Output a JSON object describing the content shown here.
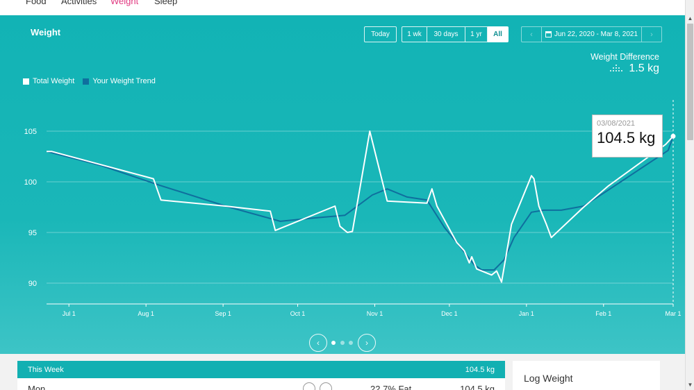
{
  "nav": {
    "items": [
      "Food",
      "Activities",
      "Weight",
      "Sleep"
    ],
    "active": "Weight"
  },
  "panel": {
    "title": "Weight"
  },
  "range_buttons": {
    "today": "Today",
    "week": "1 wk",
    "month": "30 days",
    "year": "1 yr",
    "all": "All",
    "active": "All"
  },
  "date_range": "Jun 22, 2020 - Mar 8, 2021",
  "weight_difference": {
    "label": "Weight Difference",
    "value": "1.5 kg"
  },
  "legend": {
    "total": {
      "label": "Total Weight",
      "color": "#ffffff"
    },
    "trend": {
      "label": "Your Weight Trend",
      "color": "#0f6f9e"
    }
  },
  "tooltip": {
    "date": "03/08/2021",
    "value": "104.5 kg"
  },
  "chart_data": {
    "type": "line",
    "y_ticks": [
      105,
      100,
      95,
      90
    ],
    "ylim": [
      88,
      106
    ],
    "x_ticks": [
      "Jul 1",
      "Aug 1",
      "Sep 1",
      "Oct 1",
      "Nov 1",
      "Dec 1",
      "Jan 1",
      "Feb 1",
      "Mar 1"
    ],
    "x_tick_day": [
      9,
      40,
      71,
      101,
      132,
      162,
      193,
      224,
      252
    ],
    "grid": true,
    "series": [
      {
        "name": "Total Weight",
        "color": "#ffffff",
        "points": [
          [
            0,
            103
          ],
          [
            2,
            103
          ],
          [
            43,
            100.3
          ],
          [
            46,
            98.2
          ],
          [
            72,
            97.6
          ],
          [
            90,
            97.1
          ],
          [
            92,
            95.2
          ],
          [
            116,
            97.6
          ],
          [
            118,
            95.6
          ],
          [
            121,
            95
          ],
          [
            123,
            95.1
          ],
          [
            130,
            105
          ],
          [
            137,
            98.1
          ],
          [
            153,
            97.9
          ],
          [
            155,
            99.3
          ],
          [
            157,
            97.6
          ],
          [
            165,
            94
          ],
          [
            168,
            93.2
          ],
          [
            170,
            92
          ],
          [
            171,
            92.6
          ],
          [
            173,
            91.4
          ],
          [
            179,
            90.8
          ],
          [
            181,
            91.2
          ],
          [
            183,
            90.1
          ],
          [
            187,
            95.8
          ],
          [
            191,
            98.2
          ],
          [
            195,
            100.6
          ],
          [
            196,
            100.3
          ],
          [
            198,
            97.6
          ],
          [
            201,
            95.8
          ],
          [
            203,
            94.5
          ],
          [
            216,
            97.5
          ],
          [
            226,
            99.6
          ],
          [
            249,
            103.7
          ],
          [
            252,
            104.5
          ]
        ]
      },
      {
        "name": "Your Weight Trend",
        "color": "#0f6f9e",
        "points": [
          [
            0,
            103
          ],
          [
            22,
            101.6
          ],
          [
            45,
            99.7
          ],
          [
            72,
            97.6
          ],
          [
            94,
            96.1
          ],
          [
            106,
            96.4
          ],
          [
            120,
            96.7
          ],
          [
            125,
            97.6
          ],
          [
            131,
            98.7
          ],
          [
            137,
            99.3
          ],
          [
            145,
            98.5
          ],
          [
            153,
            98.2
          ],
          [
            160,
            95.5
          ],
          [
            165,
            94
          ],
          [
            172,
            91.8
          ],
          [
            175,
            91.3
          ],
          [
            180,
            91.3
          ],
          [
            184,
            92.3
          ],
          [
            188,
            94.5
          ],
          [
            195,
            97
          ],
          [
            200,
            97.2
          ],
          [
            207,
            97.2
          ],
          [
            216,
            97.6
          ],
          [
            226,
            99.2
          ],
          [
            250,
            103.1
          ],
          [
            252,
            104.5
          ]
        ]
      }
    ]
  },
  "pager": {
    "prev": "‹",
    "next": "›",
    "dots": 3,
    "active": 0
  },
  "week": {
    "title": "This Week",
    "total": "104.5 kg",
    "row_day": "Mon",
    "row_fat": "22.7% Fat",
    "row_weight": "104.5 kg"
  },
  "log": {
    "title": "Log Weight"
  },
  "icons": {
    "calendar": "calendar-icon",
    "scale": "scale-dots-icon",
    "delete": "trash-icon",
    "edit": "pencil-icon"
  }
}
